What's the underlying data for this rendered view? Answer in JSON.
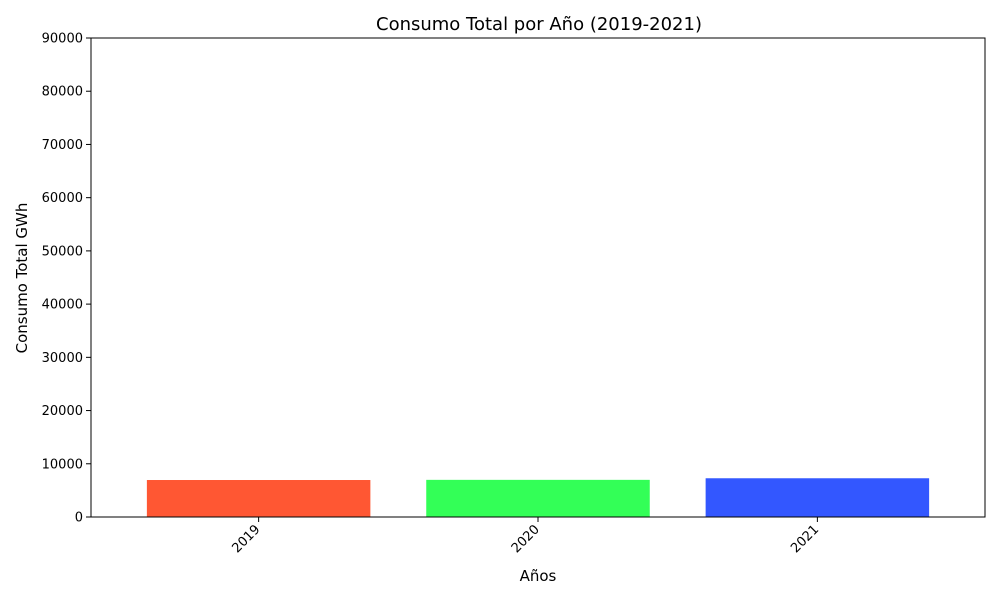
{
  "chart_data": {
    "type": "bar",
    "title": "Consumo Total por Año (2019-2021)",
    "xlabel": "Años",
    "ylabel": "Consumo Total GWh",
    "categories": [
      "2019",
      "2020",
      "2021"
    ],
    "values": [
      6950,
      6980,
      7280
    ],
    "colors": [
      "#ff5733",
      "#33ff57",
      "#3357ff"
    ],
    "ylim": [
      0,
      90000
    ],
    "yticks": [
      "0",
      "10000",
      "20000",
      "30000",
      "40000",
      "50000",
      "60000",
      "70000",
      "80000",
      "90000"
    ],
    "grid": false,
    "legend": "none"
  }
}
